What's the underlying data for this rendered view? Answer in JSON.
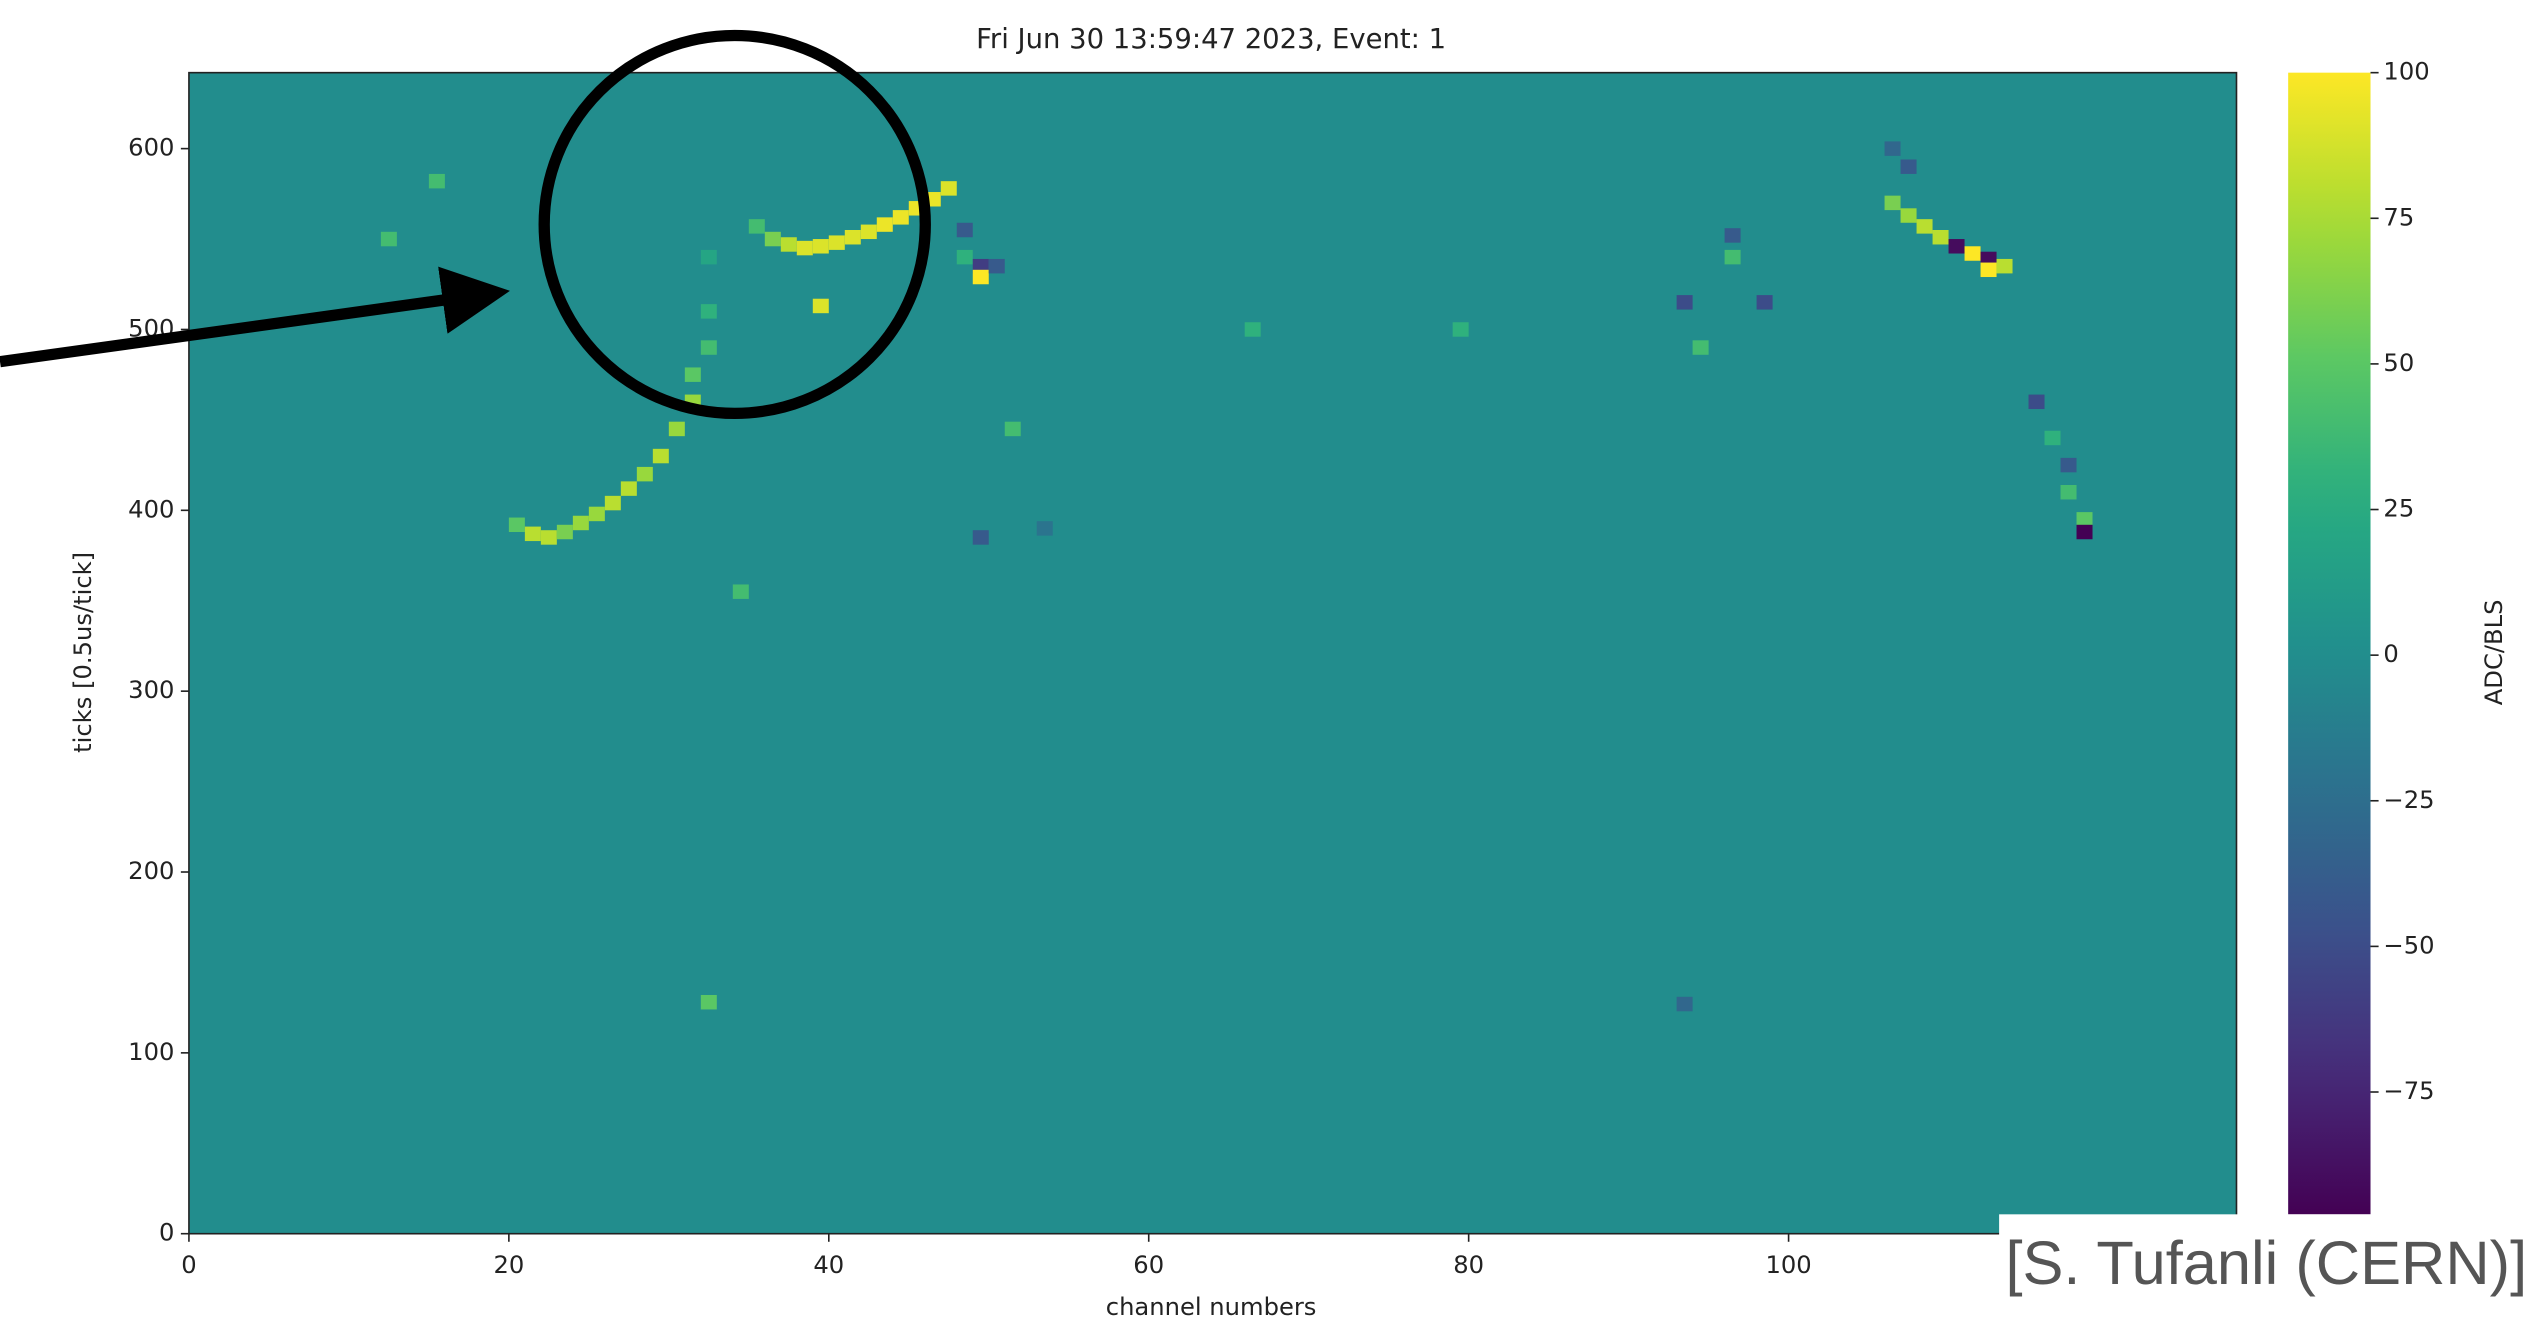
{
  "chart_data": {
    "type": "heatmap",
    "title": "Fri Jun 30 13:59:47 2023, Event: 1",
    "xlabel": "channel numbers",
    "ylabel": "ticks [0.5us/tick]",
    "colorbar_label": "ADC/BLS",
    "colormap": "viridis",
    "xlim": [
      0,
      128
    ],
    "xticks": [
      0,
      20,
      40,
      60,
      80,
      100
    ],
    "ylim": [
      0,
      642
    ],
    "yticks": [
      0,
      100,
      200,
      300,
      400,
      500,
      600
    ],
    "clim": [
      -96,
      100
    ],
    "cticks": [
      {
        "value": -75,
        "label": "−75"
      },
      {
        "value": -50,
        "label": "−50"
      },
      {
        "value": -25,
        "label": "−25"
      },
      0,
      25,
      50,
      75,
      100
    ],
    "background_value": 0,
    "hits": {
      "x": [
        20,
        21,
        22,
        23,
        24,
        25,
        26,
        27,
        28,
        29,
        30,
        31,
        31,
        32,
        32,
        32,
        35,
        36,
        37,
        38,
        39,
        40,
        41,
        42,
        43,
        44,
        45,
        46,
        47,
        48,
        48,
        49,
        49,
        50,
        39,
        106,
        107,
        108,
        109,
        110,
        111,
        112,
        112,
        113,
        106,
        107,
        115,
        116,
        117,
        117,
        118,
        118,
        12,
        15,
        51,
        53,
        34,
        32,
        96,
        96,
        93,
        94,
        98,
        66,
        79,
        49,
        93
      ],
      "y": [
        392,
        387,
        385,
        388,
        393,
        398,
        404,
        412,
        420,
        430,
        445,
        460,
        475,
        490,
        510,
        540,
        557,
        550,
        547,
        545,
        546,
        548,
        551,
        554,
        558,
        562,
        567,
        572,
        578,
        555,
        540,
        535,
        529,
        535,
        513,
        570,
        563,
        557,
        551,
        546,
        542,
        539,
        533,
        535,
        600,
        590,
        460,
        440,
        425,
        410,
        395,
        388,
        550,
        582,
        445,
        390,
        355,
        128,
        552,
        540,
        515,
        490,
        515,
        500,
        500,
        385,
        127
      ],
      "values": [
        50,
        80,
        80,
        60,
        70,
        70,
        80,
        80,
        70,
        80,
        70,
        70,
        50,
        40,
        30,
        20,
        40,
        60,
        80,
        90,
        90,
        90,
        90,
        90,
        95,
        95,
        95,
        95,
        90,
        -40,
        30,
        -60,
        100,
        -40,
        90,
        60,
        70,
        80,
        80,
        -90,
        100,
        -90,
        100,
        80,
        -30,
        -40,
        -50,
        30,
        -40,
        40,
        50,
        -96,
        40,
        40,
        40,
        -20,
        40,
        50,
        -40,
        40,
        -50,
        40,
        -50,
        30,
        30,
        -40,
        -30
      ]
    }
  },
  "annotation": {
    "credit": "[S. Tufanli (CERN)]"
  }
}
